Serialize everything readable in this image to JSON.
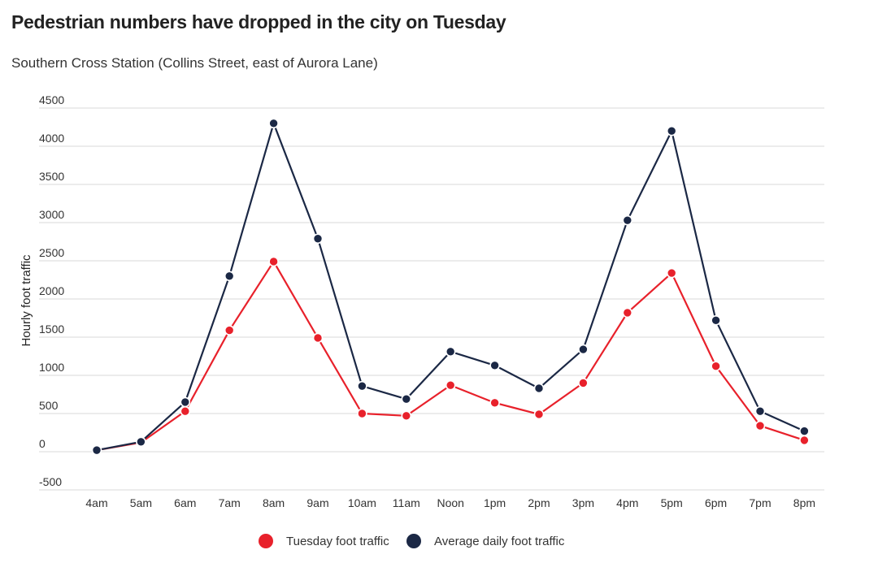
{
  "title": "Pedestrian numbers have dropped in the city on Tuesday",
  "subtitle": "Southern Cross Station (Collins Street, east of Aurora Lane)",
  "chart_data": {
    "type": "line",
    "title": "Pedestrian numbers have dropped in the city on Tuesday",
    "subtitle": "Southern Cross Station (Collins Street, east of Aurora Lane)",
    "xlabel": "",
    "ylabel": "Hourly foot traffic",
    "ylim": [
      -500,
      4500
    ],
    "yticks": [
      -500,
      0,
      500,
      1000,
      1500,
      2000,
      2500,
      3000,
      3500,
      4000,
      4500
    ],
    "categories": [
      "4am",
      "5am",
      "6am",
      "7am",
      "8am",
      "9am",
      "10am",
      "11am",
      "Noon",
      "1pm",
      "2pm",
      "3pm",
      "4pm",
      "5pm",
      "6pm",
      "7pm",
      "8pm"
    ],
    "series": [
      {
        "name": "Tuesday foot traffic",
        "color": "#e8212b",
        "values": [
          20,
          120,
          530,
          1590,
          2490,
          1490,
          500,
          470,
          870,
          640,
          490,
          900,
          1820,
          2340,
          1120,
          340,
          150
        ]
      },
      {
        "name": "Average daily foot traffic",
        "color": "#1b2845",
        "values": [
          20,
          130,
          650,
          2300,
          4300,
          2790,
          860,
          690,
          1310,
          1130,
          830,
          1340,
          3030,
          4200,
          1720,
          530,
          270
        ]
      }
    ],
    "grid": true,
    "legend": "bottom-center"
  }
}
